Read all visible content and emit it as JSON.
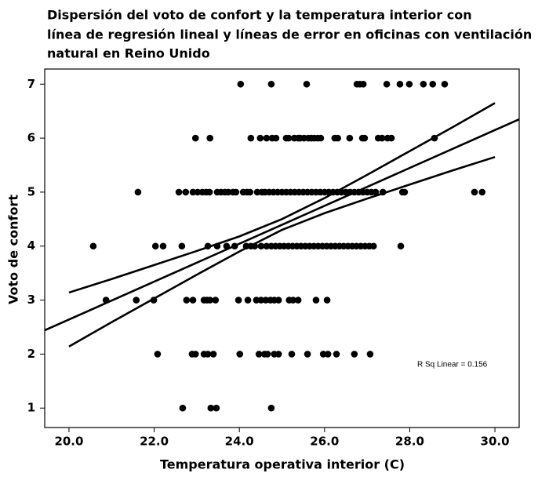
{
  "chart_data": {
    "type": "scatter",
    "title": [
      "Dispersión del voto de confort y la temperatura interior con",
      "línea de regresión lineal y líneas de error en oficinas con ventilación",
      "natural en Reino Unido"
    ],
    "xlabel": "Temperatura operativa interior (C)",
    "ylabel": "Voto de confort",
    "annotation": "R Sq Linear = 0.156",
    "color": "#000000",
    "xlim": [
      19.43,
      30.57
    ],
    "ylim": [
      0.64,
      7.28
    ],
    "xticks": [
      {
        "value": 20,
        "label": "20.0"
      },
      {
        "value": 22,
        "label": "22.0"
      },
      {
        "value": 24,
        "label": "24.0"
      },
      {
        "value": 26,
        "label": "26.0"
      },
      {
        "value": 28,
        "label": "28.0"
      },
      {
        "value": 30,
        "label": "30.0"
      }
    ],
    "yticks": [
      1,
      2,
      3,
      4,
      5,
      6,
      7
    ],
    "x": [
      24.03,
      24.75,
      25.58,
      26.76,
      26.83,
      26.91,
      27.46,
      27.77,
      27.99,
      28.32,
      28.54,
      28.82,
      22.97,
      23.31,
      24.27,
      24.49,
      24.64,
      24.77,
      24.86,
      25.1,
      25.16,
      25.29,
      25.38,
      25.43,
      25.52,
      25.62,
      25.69,
      25.76,
      25.84,
      25.91,
      26.24,
      26.31,
      26.59,
      26.89,
      26.94,
      27.26,
      27.35,
      27.48,
      27.57,
      28.58,
      21.62,
      22.58,
      22.74,
      22.91,
      23.02,
      23.13,
      23.22,
      23.3,
      23.48,
      23.57,
      23.66,
      23.74,
      23.85,
      23.92,
      24.09,
      24.18,
      24.25,
      24.42,
      24.53,
      24.6,
      24.7,
      24.8,
      24.9,
      25.0,
      25.1,
      25.2,
      25.3,
      25.4,
      25.5,
      25.6,
      25.7,
      25.8,
      25.9,
      26.0,
      26.1,
      26.2,
      26.3,
      26.4,
      26.5,
      26.6,
      26.7,
      26.8,
      26.9,
      27.0,
      27.1,
      27.2,
      27.37,
      27.83,
      27.88,
      29.52,
      29.7,
      20.57,
      22.03,
      22.21,
      22.65,
      23.26,
      23.48,
      23.7,
      23.89,
      24.16,
      24.27,
      24.36,
      24.51,
      24.64,
      24.75,
      24.85,
      24.95,
      25.05,
      25.15,
      25.25,
      25.35,
      25.45,
      25.55,
      25.65,
      25.75,
      25.85,
      25.95,
      26.05,
      26.15,
      26.25,
      26.35,
      26.45,
      26.55,
      26.65,
      26.75,
      26.85,
      26.95,
      27.05,
      27.15,
      27.79,
      20.87,
      21.58,
      21.99,
      22.76,
      22.91,
      23.17,
      23.24,
      23.31,
      23.44,
      23.98,
      24.2,
      24.4,
      24.51,
      24.62,
      24.73,
      24.82,
      24.92,
      25.17,
      25.26,
      25.38,
      25.8,
      26.06,
      22.08,
      22.89,
      22.97,
      23.17,
      23.26,
      23.39,
      24.01,
      24.46,
      24.59,
      24.66,
      24.82,
      24.92,
      25.23,
      25.6,
      25.97,
      26.08,
      26.28,
      26.7,
      27.07,
      22.67,
      23.33,
      23.46,
      24.75
    ],
    "values": [
      7,
      7,
      7,
      7,
      7,
      7,
      7,
      7,
      7,
      7,
      7,
      7,
      6,
      6,
      6,
      6,
      6,
      6,
      6,
      6,
      6,
      6,
      6,
      6,
      6,
      6,
      6,
      6,
      6,
      6,
      6,
      6,
      6,
      6,
      6,
      6,
      6,
      6,
      6,
      6,
      5,
      5,
      5,
      5,
      5,
      5,
      5,
      5,
      5,
      5,
      5,
      5,
      5,
      5,
      5,
      5,
      5,
      5,
      5,
      5,
      5,
      5,
      5,
      5,
      5,
      5,
      5,
      5,
      5,
      5,
      5,
      5,
      5,
      5,
      5,
      5,
      5,
      5,
      5,
      5,
      5,
      5,
      5,
      5,
      5,
      5,
      5,
      5,
      5,
      5,
      5,
      4,
      4,
      4,
      4,
      4,
      4,
      4,
      4,
      4,
      4,
      4,
      4,
      4,
      4,
      4,
      4,
      4,
      4,
      4,
      4,
      4,
      4,
      4,
      4,
      4,
      4,
      4,
      4,
      4,
      4,
      4,
      4,
      4,
      4,
      4,
      4,
      4,
      4,
      4,
      3,
      3,
      3,
      3,
      3,
      3,
      3,
      3,
      3,
      3,
      3,
      3,
      3,
      3,
      3,
      3,
      3,
      3,
      3,
      3,
      3,
      3,
      2,
      2,
      2,
      2,
      2,
      2,
      2,
      2,
      2,
      2,
      2,
      2,
      2,
      2,
      2,
      2,
      2,
      2,
      2,
      1,
      1,
      1,
      1
    ],
    "lines": [
      {
        "x": [
          19.43,
          30.57
        ],
        "values": [
          2.44,
          6.35
        ]
      },
      {
        "x": [
          20,
          21,
          22,
          23,
          24,
          25,
          26,
          27,
          28,
          29,
          30
        ],
        "values": [
          3.14,
          3.39,
          3.65,
          3.91,
          4.18,
          4.5,
          4.89,
          5.32,
          5.76,
          6.2,
          6.65
        ]
      },
      {
        "x": [
          20,
          21,
          22,
          23,
          24,
          25,
          26,
          27,
          28,
          29,
          30
        ],
        "values": [
          2.14,
          2.59,
          3.03,
          3.47,
          3.9,
          4.3,
          4.61,
          4.88,
          5.14,
          5.4,
          5.65
        ]
      }
    ]
  }
}
